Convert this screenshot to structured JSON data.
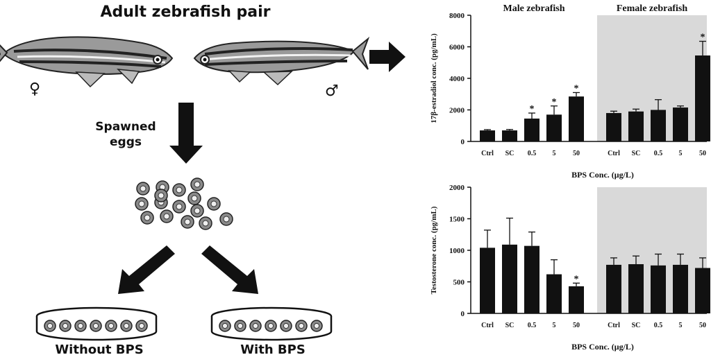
{
  "figure": {
    "title": "Adult zebrafish pair",
    "female_symbol": "♀",
    "male_symbol": "♂",
    "step_label_line1": "Spawned",
    "step_label_line2": "eggs",
    "dish_without": "Without BPS",
    "dish_with": "With BPS"
  },
  "colors": {
    "bar": "#111111",
    "female_panel_bg": "#d9d9d9",
    "fish_body": "#9a9a9a",
    "arrow": "#111111"
  },
  "chart_data": [
    {
      "type": "bar",
      "group_titles": [
        "Male zebrafish",
        "Female zebrafish"
      ],
      "ylabel": "17β-estradiol conc. (pg/mL)",
      "xlabel": "BPS Conc. (μg/L)",
      "ylim": [
        0,
        8000
      ],
      "yticks": [
        0,
        2000,
        4000,
        6000,
        8000
      ],
      "categories": [
        "Ctrl",
        "SC",
        "0.5",
        "5",
        "50"
      ],
      "series": [
        {
          "values": [
            700,
            700,
            1450,
            1700,
            2850
          ],
          "errors": [
            50,
            60,
            350,
            550,
            250
          ],
          "significant": [
            false,
            false,
            true,
            true,
            true
          ]
        },
        {
          "values": [
            1800,
            1900,
            2000,
            2150,
            5450
          ],
          "errors": [
            120,
            150,
            650,
            100,
            900
          ],
          "significant": [
            false,
            false,
            false,
            false,
            true
          ]
        }
      ],
      "significance_mark": "*"
    },
    {
      "type": "bar",
      "ylabel": "Testosterone conc. (pg/mL)",
      "xlabel": "BPS Conc. (μg/L)",
      "ylim": [
        0,
        2000
      ],
      "yticks": [
        0,
        500,
        1000,
        1500,
        2000
      ],
      "categories": [
        "Ctrl",
        "SC",
        "0.5",
        "5",
        "50"
      ],
      "series": [
        {
          "values": [
            1040,
            1090,
            1070,
            620,
            430
          ],
          "errors": [
            280,
            420,
            220,
            230,
            50
          ],
          "significant": [
            false,
            false,
            false,
            false,
            true
          ]
        },
        {
          "values": [
            770,
            780,
            760,
            770,
            720
          ],
          "errors": [
            110,
            130,
            180,
            170,
            160
          ],
          "significant": [
            false,
            false,
            false,
            false,
            false
          ]
        }
      ],
      "significance_mark": "*"
    }
  ]
}
